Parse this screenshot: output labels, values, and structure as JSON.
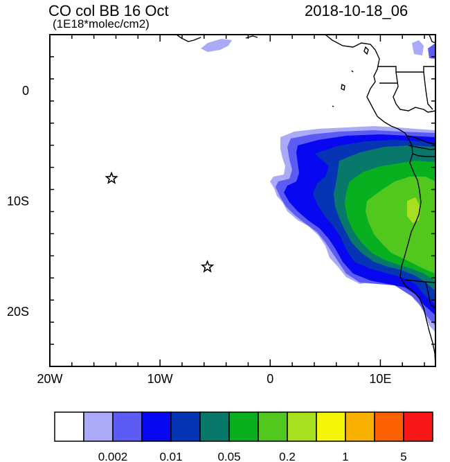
{
  "header": {
    "title": "CO col BB 16 Oct",
    "units": "(1E18*molec/cm2)",
    "datetime": "2018-10-18_06"
  },
  "map": {
    "region": "Southeast Atlantic / west coast of southern Africa",
    "lon_range": [
      -20,
      15
    ],
    "lat_range": [
      -25,
      5
    ],
    "x_ticks": [
      {
        "lon": -20,
        "label": "20W"
      },
      {
        "lon": -10,
        "label": "10W"
      },
      {
        "lon": 0,
        "label": "0"
      },
      {
        "lon": 10,
        "label": "10E"
      }
    ],
    "y_ticks": [
      {
        "lat": 0,
        "label": "0"
      },
      {
        "lat": -10,
        "label": "10S"
      },
      {
        "lat": -20,
        "label": "20S"
      }
    ],
    "markers": [
      {
        "name": "star-marker-ascension",
        "lon": -14.4,
        "lat": -8.0
      },
      {
        "name": "star-marker-st-helena",
        "lon": -5.7,
        "lat": -16.0
      }
    ]
  },
  "colorbar": {
    "colors": [
      "#ffffff",
      "#aaaaf8",
      "#5c5cf5",
      "#0808f0",
      "#0535b5",
      "#08786a",
      "#08b020",
      "#52c81e",
      "#a8e020",
      "#f5f50a",
      "#f8b000",
      "#f86000",
      "#f81818"
    ],
    "labels": [
      {
        "after_box": 2,
        "text": "0.002"
      },
      {
        "after_box": 4,
        "text": "0.01"
      },
      {
        "after_box": 6,
        "text": "0.05"
      },
      {
        "after_box": 8,
        "text": "0.2"
      },
      {
        "after_box": 10,
        "text": "1"
      },
      {
        "after_box": 12,
        "text": "5"
      }
    ]
  }
}
